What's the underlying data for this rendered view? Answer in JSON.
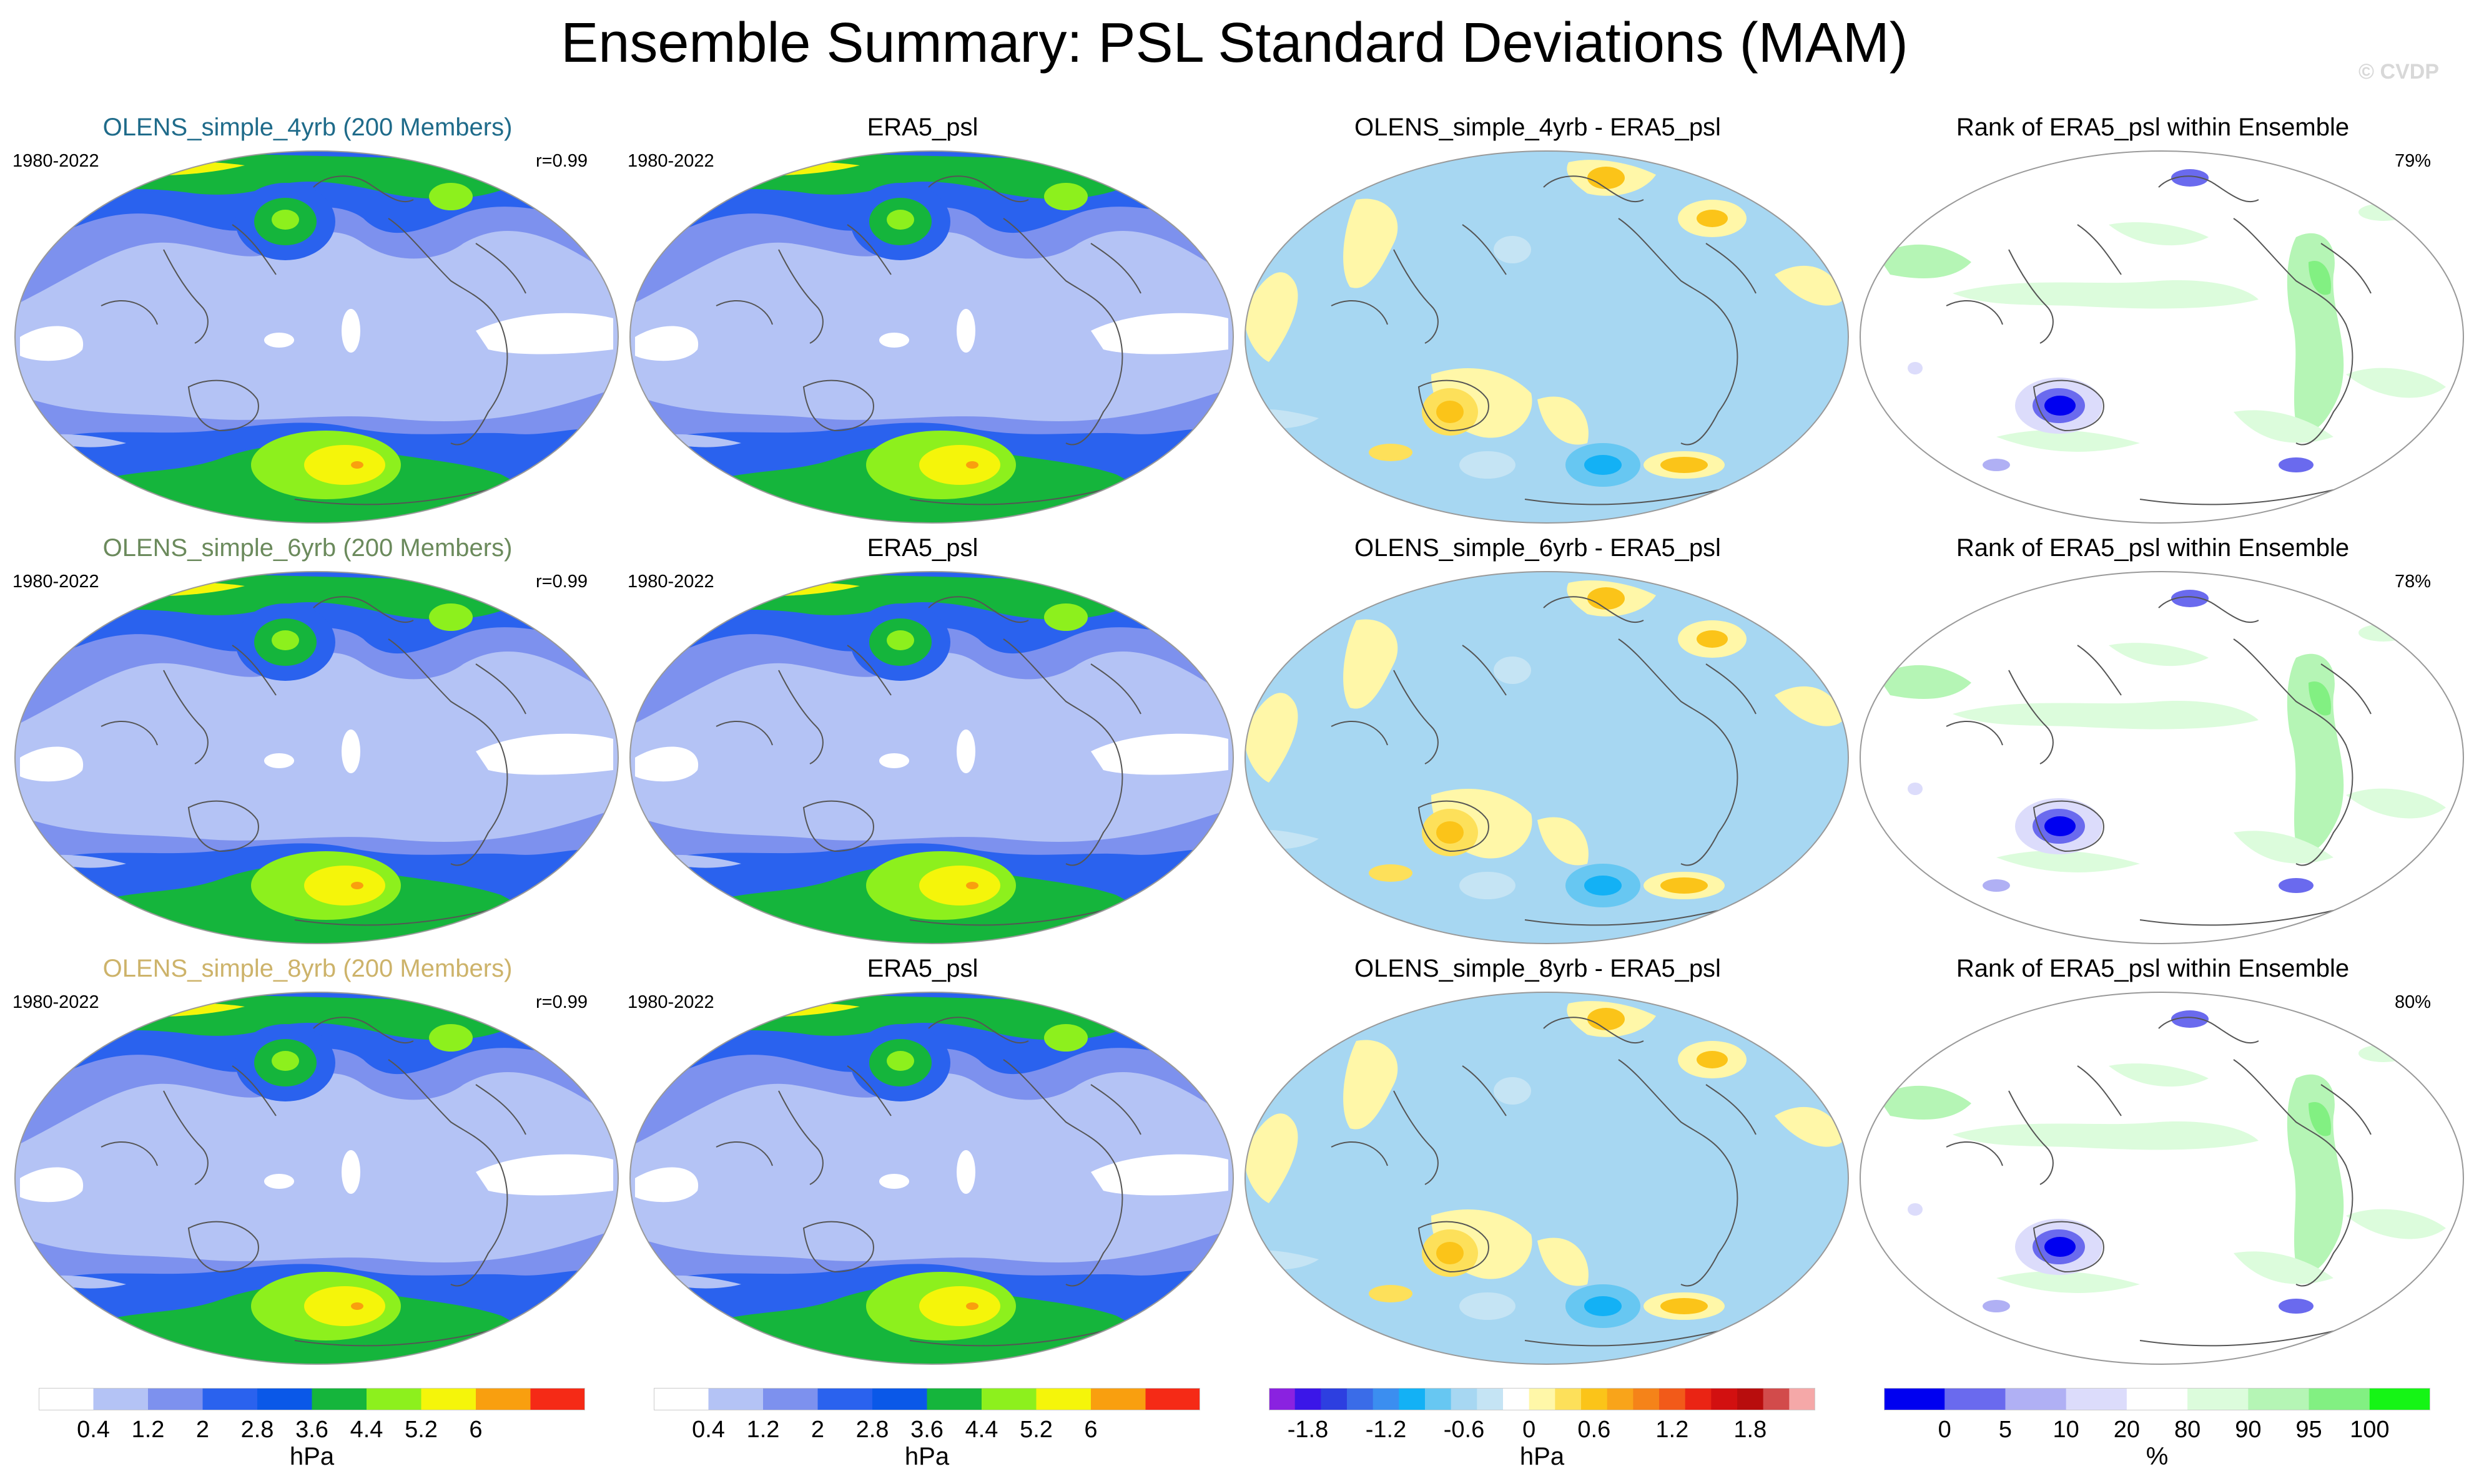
{
  "title": "Ensemble Summary: PSL Standard Deviations (MAM)",
  "copyright": "© CVDP",
  "rows": [
    {
      "model_title": "OLENS_simple_4yrb (200 Members)",
      "model_title_color": "#1f6b8a",
      "years": "1980-2022",
      "correlation": "r=0.99",
      "obs_title": "ERA5_psl",
      "obs_years": "1980-2022",
      "diff_title": "OLENS_simple_4yrb - ERA5_psl",
      "rank_title": "Rank of ERA5_psl within Ensemble",
      "rank_pct": "79%"
    },
    {
      "model_title": "OLENS_simple_6yrb (200 Members)",
      "model_title_color": "#6b8a5c",
      "years": "1980-2022",
      "correlation": "r=0.99",
      "obs_title": "ERA5_psl",
      "obs_years": "1980-2022",
      "diff_title": "OLENS_simple_6yrb - ERA5_psl",
      "rank_title": "Rank of ERA5_psl within Ensemble",
      "rank_pct": "78%"
    },
    {
      "model_title": "OLENS_simple_8yrb (200 Members)",
      "model_title_color": "#cdb36a",
      "years": "1980-2022",
      "correlation": "r=0.99",
      "obs_title": "ERA5_psl",
      "obs_years": "1980-2022",
      "diff_title": "OLENS_simple_8yrb - ERA5_psl",
      "rank_title": "Rank of ERA5_psl within Ensemble",
      "rank_pct": "80%"
    }
  ],
  "colorbars": {
    "sd": {
      "colors": [
        "#ffffff",
        "#b4c3f5",
        "#7d91ee",
        "#2a62ee",
        "#0a58e8",
        "#15b53c",
        "#8df01d",
        "#f5f50a",
        "#f99f0f",
        "#f52a16"
      ],
      "labels": [
        "0.4",
        "1.2",
        "2",
        "2.8",
        "3.6",
        "4.4",
        "5.2",
        "6"
      ],
      "unit": "hPa"
    },
    "diff": {
      "colors": [
        "#8a22e0",
        "#3b16e8",
        "#2d3fe0",
        "#3a6ce8",
        "#3b8ef0",
        "#13b1f5",
        "#67c7f2",
        "#a7d7f2",
        "#c5e4f4",
        "#ffffff",
        "#fff7a8",
        "#fde05a",
        "#fbc419",
        "#f9a41a",
        "#f58319",
        "#f25a19",
        "#ea2414",
        "#d21010",
        "#b80d0d",
        "#d24b4b",
        "#f5a8a8"
      ],
      "labels": [
        "-1.8",
        "-1.2",
        "-0.6",
        "0",
        "0.6",
        "1.2",
        "1.8"
      ],
      "unit": "hPa"
    },
    "rank": {
      "colors": [
        "#0000f0",
        "#6a6aee",
        "#b0b0f4",
        "#dcdcfb",
        "#ffffff",
        "#dcfcdc",
        "#b5f5b5",
        "#82f082",
        "#15f515"
      ],
      "labels": [
        "0",
        "5",
        "10",
        "20",
        "80",
        "90",
        "95",
        "100"
      ],
      "unit": "%"
    }
  }
}
